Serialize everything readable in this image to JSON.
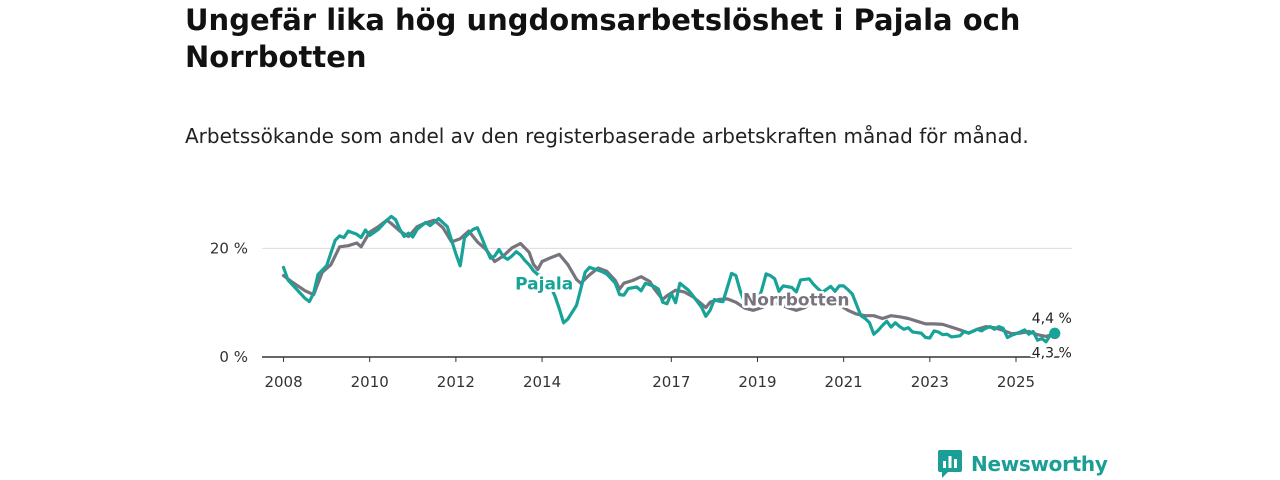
{
  "header": {
    "title": "Ungefär lika hög ungdomsarbetslöshet i Pajala och Norrbotten",
    "subtitle": "Arbetssökande som andel av den registerbaserade arbetskraften månad för månad."
  },
  "brand": {
    "name": "Newsworthy",
    "color": "#1a9e96",
    "icon": "newsworthy-logo-icon"
  },
  "chart_data": {
    "type": "line",
    "title": "Ungefär lika hög ungdomsarbetslöshet i Pajala och Norrbotten",
    "subtitle": "Arbetssökande som andel av den registerbaserade arbetskraften månad för månad.",
    "xlabel": "",
    "ylabel": "",
    "x_range": [
      2007.5,
      2026.3
    ],
    "ylim": [
      0,
      28
    ],
    "y_ticks": [
      {
        "value": 0,
        "label": "0 %"
      },
      {
        "value": 20,
        "label": "20 %"
      }
    ],
    "x_ticks": [
      {
        "value": 2008,
        "label": "2008"
      },
      {
        "value": 2010,
        "label": "2010"
      },
      {
        "value": 2012,
        "label": "2012"
      },
      {
        "value": 2014,
        "label": "2014"
      },
      {
        "value": 2017,
        "label": "2017"
      },
      {
        "value": 2019,
        "label": "2019"
      },
      {
        "value": 2021,
        "label": "2021"
      },
      {
        "value": 2023,
        "label": "2023"
      },
      {
        "value": 2025,
        "label": "2025"
      }
    ],
    "grid": true,
    "series": [
      {
        "name": "Norrbotten",
        "label": "Norrbotten",
        "color": "#78737d",
        "label_at": [
          2019.9,
          9.5
        ],
        "end_label": "4,3 %",
        "points": [
          [
            2008.0,
            15.0
          ],
          [
            2008.2,
            13.8
          ],
          [
            2008.5,
            12.2
          ],
          [
            2008.7,
            11.5
          ],
          [
            2008.9,
            15.6
          ],
          [
            2009.1,
            17.0
          ],
          [
            2009.3,
            20.3
          ],
          [
            2009.5,
            20.5
          ],
          [
            2009.7,
            21.0
          ],
          [
            2009.8,
            20.3
          ],
          [
            2010.0,
            23.0
          ],
          [
            2010.2,
            24.0
          ],
          [
            2010.4,
            25.2
          ],
          [
            2010.5,
            24.6
          ],
          [
            2010.7,
            23.2
          ],
          [
            2010.9,
            22.2
          ],
          [
            2011.1,
            24.0
          ],
          [
            2011.3,
            24.7
          ],
          [
            2011.5,
            25.2
          ],
          [
            2011.7,
            23.8
          ],
          [
            2011.9,
            21.2
          ],
          [
            2012.1,
            21.8
          ],
          [
            2012.3,
            23.2
          ],
          [
            2012.5,
            21.2
          ],
          [
            2012.7,
            19.8
          ],
          [
            2012.9,
            17.6
          ],
          [
            2013.1,
            18.6
          ],
          [
            2013.3,
            20.1
          ],
          [
            2013.5,
            20.9
          ],
          [
            2013.7,
            19.3
          ],
          [
            2013.8,
            17.1
          ],
          [
            2013.9,
            16.1
          ],
          [
            2014.0,
            17.6
          ],
          [
            2014.2,
            18.3
          ],
          [
            2014.4,
            18.9
          ],
          [
            2014.6,
            17.0
          ],
          [
            2014.8,
            14.3
          ],
          [
            2014.9,
            13.6
          ],
          [
            2015.1,
            15.1
          ],
          [
            2015.3,
            16.4
          ],
          [
            2015.5,
            15.8
          ],
          [
            2015.7,
            14.1
          ],
          [
            2015.8,
            12.5
          ],
          [
            2015.9,
            13.6
          ],
          [
            2016.1,
            14.1
          ],
          [
            2016.3,
            14.8
          ],
          [
            2016.5,
            13.9
          ],
          [
            2016.6,
            12.6
          ],
          [
            2016.8,
            10.6
          ],
          [
            2016.9,
            11.3
          ],
          [
            2017.1,
            12.3
          ],
          [
            2017.3,
            12.0
          ],
          [
            2017.5,
            11.1
          ],
          [
            2017.7,
            9.8
          ],
          [
            2017.8,
            9.1
          ],
          [
            2017.9,
            10.1
          ],
          [
            2018.1,
            10.6
          ],
          [
            2018.3,
            10.7
          ],
          [
            2018.5,
            10.1
          ],
          [
            2018.7,
            9.0
          ],
          [
            2018.9,
            8.6
          ],
          [
            2019.1,
            9.1
          ],
          [
            2019.3,
            9.9
          ],
          [
            2019.5,
            9.8
          ],
          [
            2019.7,
            9.1
          ],
          [
            2019.9,
            8.6
          ],
          [
            2020.1,
            9.1
          ],
          [
            2020.3,
            10.3
          ],
          [
            2020.5,
            11.1
          ],
          [
            2020.7,
            10.6
          ],
          [
            2020.9,
            9.6
          ],
          [
            2021.1,
            8.6
          ],
          [
            2021.3,
            7.9
          ],
          [
            2021.5,
            7.6
          ],
          [
            2021.7,
            7.6
          ],
          [
            2021.9,
            7.1
          ],
          [
            2022.1,
            7.6
          ],
          [
            2022.3,
            7.4
          ],
          [
            2022.5,
            7.1
          ],
          [
            2022.7,
            6.6
          ],
          [
            2022.9,
            6.1
          ],
          [
            2023.1,
            6.1
          ],
          [
            2023.3,
            6.0
          ],
          [
            2023.5,
            5.5
          ],
          [
            2023.7,
            5.0
          ],
          [
            2023.9,
            4.4
          ],
          [
            2024.1,
            5.1
          ],
          [
            2024.3,
            5.6
          ],
          [
            2024.5,
            5.4
          ],
          [
            2024.7,
            4.9
          ],
          [
            2024.9,
            4.3
          ],
          [
            2025.1,
            4.4
          ],
          [
            2025.3,
            4.7
          ],
          [
            2025.5,
            4.1
          ],
          [
            2025.7,
            3.8
          ],
          [
            2025.9,
            4.3
          ]
        ]
      },
      {
        "name": "Pajala",
        "label": "Pajala",
        "color": "#17a398",
        "label_at": [
          2014.05,
          12.4
        ],
        "end_label": "4,4 %",
        "points": [
          [
            2008.0,
            16.5
          ],
          [
            2008.1,
            14.2
          ],
          [
            2008.3,
            12.5
          ],
          [
            2008.5,
            10.8
          ],
          [
            2008.6,
            10.2
          ],
          [
            2008.7,
            11.8
          ],
          [
            2008.8,
            15.2
          ],
          [
            2009.0,
            16.8
          ],
          [
            2009.2,
            21.5
          ],
          [
            2009.3,
            22.3
          ],
          [
            2009.4,
            22.0
          ],
          [
            2009.5,
            23.2
          ],
          [
            2009.7,
            22.6
          ],
          [
            2009.8,
            22.0
          ],
          [
            2009.9,
            23.4
          ],
          [
            2010.0,
            22.4
          ],
          [
            2010.2,
            23.5
          ],
          [
            2010.4,
            25.2
          ],
          [
            2010.5,
            25.9
          ],
          [
            2010.6,
            25.3
          ],
          [
            2010.7,
            23.5
          ],
          [
            2010.8,
            22.2
          ],
          [
            2010.9,
            22.8
          ],
          [
            2011.0,
            22.1
          ],
          [
            2011.1,
            23.5
          ],
          [
            2011.3,
            24.8
          ],
          [
            2011.4,
            24.2
          ],
          [
            2011.6,
            25.5
          ],
          [
            2011.8,
            24.0
          ],
          [
            2011.9,
            21.5
          ],
          [
            2012.0,
            19.0
          ],
          [
            2012.1,
            16.8
          ],
          [
            2012.2,
            22.0
          ],
          [
            2012.4,
            23.5
          ],
          [
            2012.5,
            23.8
          ],
          [
            2012.6,
            22.0
          ],
          [
            2012.7,
            20.0
          ],
          [
            2012.8,
            18.2
          ],
          [
            2012.9,
            18.6
          ],
          [
            2013.0,
            19.8
          ],
          [
            2013.1,
            18.5
          ],
          [
            2013.2,
            18.0
          ],
          [
            2013.3,
            18.6
          ],
          [
            2013.4,
            19.4
          ],
          [
            2013.5,
            18.8
          ],
          [
            2013.6,
            17.8
          ],
          [
            2013.7,
            17.0
          ],
          [
            2013.8,
            15.9
          ],
          [
            2013.9,
            15.2
          ],
          [
            2014.0,
            14.8
          ],
          [
            2014.2,
            13.0
          ],
          [
            2014.3,
            11.2
          ],
          [
            2014.4,
            8.9
          ],
          [
            2014.5,
            6.3
          ],
          [
            2014.6,
            7.0
          ],
          [
            2014.8,
            9.5
          ],
          [
            2015.0,
            15.6
          ],
          [
            2015.1,
            16.5
          ],
          [
            2015.3,
            16.0
          ],
          [
            2015.4,
            15.7
          ],
          [
            2015.5,
            15.3
          ],
          [
            2015.7,
            13.6
          ],
          [
            2015.8,
            11.5
          ],
          [
            2015.9,
            11.4
          ],
          [
            2016.0,
            12.6
          ],
          [
            2016.2,
            12.9
          ],
          [
            2016.3,
            12.2
          ],
          [
            2016.4,
            13.6
          ],
          [
            2016.6,
            13.0
          ],
          [
            2016.7,
            12.5
          ],
          [
            2016.8,
            10.1
          ],
          [
            2016.9,
            9.8
          ],
          [
            2017.0,
            11.7
          ],
          [
            2017.1,
            10.0
          ],
          [
            2017.2,
            13.6
          ],
          [
            2017.4,
            12.3
          ],
          [
            2017.5,
            11.3
          ],
          [
            2017.7,
            9.2
          ],
          [
            2017.8,
            7.5
          ],
          [
            2017.9,
            8.6
          ],
          [
            2018.0,
            10.6
          ],
          [
            2018.1,
            10.3
          ],
          [
            2018.2,
            10.2
          ],
          [
            2018.4,
            15.4
          ],
          [
            2018.5,
            15.0
          ],
          [
            2018.6,
            12.2
          ],
          [
            2018.7,
            10.1
          ],
          [
            2018.9,
            9.6
          ],
          [
            2019.0,
            10.0
          ],
          [
            2019.1,
            12.4
          ],
          [
            2019.2,
            15.3
          ],
          [
            2019.3,
            15.0
          ],
          [
            2019.4,
            14.4
          ],
          [
            2019.5,
            12.1
          ],
          [
            2019.6,
            13.1
          ],
          [
            2019.8,
            12.8
          ],
          [
            2019.9,
            12.0
          ],
          [
            2020.0,
            14.2
          ],
          [
            2020.2,
            14.4
          ],
          [
            2020.3,
            13.4
          ],
          [
            2020.4,
            12.6
          ],
          [
            2020.5,
            11.9
          ],
          [
            2020.7,
            13.0
          ],
          [
            2020.8,
            12.1
          ],
          [
            2020.9,
            13.1
          ],
          [
            2021.0,
            13.1
          ],
          [
            2021.1,
            12.4
          ],
          [
            2021.2,
            11.6
          ],
          [
            2021.3,
            9.6
          ],
          [
            2021.4,
            7.6
          ],
          [
            2021.5,
            7.1
          ],
          [
            2021.6,
            6.3
          ],
          [
            2021.7,
            4.2
          ],
          [
            2021.8,
            4.9
          ],
          [
            2021.9,
            5.8
          ],
          [
            2022.0,
            6.6
          ],
          [
            2022.1,
            5.5
          ],
          [
            2022.2,
            6.3
          ],
          [
            2022.3,
            5.6
          ],
          [
            2022.4,
            5.1
          ],
          [
            2022.5,
            5.4
          ],
          [
            2022.6,
            4.6
          ],
          [
            2022.7,
            4.5
          ],
          [
            2022.8,
            4.4
          ],
          [
            2022.9,
            3.6
          ],
          [
            2023.0,
            3.5
          ],
          [
            2023.1,
            4.8
          ],
          [
            2023.2,
            4.6
          ],
          [
            2023.3,
            4.1
          ],
          [
            2023.4,
            4.2
          ],
          [
            2023.5,
            3.7
          ],
          [
            2023.7,
            3.9
          ],
          [
            2023.8,
            4.7
          ],
          [
            2023.9,
            4.4
          ],
          [
            2024.1,
            5.1
          ],
          [
            2024.2,
            4.8
          ],
          [
            2024.3,
            5.3
          ],
          [
            2024.4,
            5.6
          ],
          [
            2024.5,
            5.1
          ],
          [
            2024.6,
            5.6
          ],
          [
            2024.7,
            5.3
          ],
          [
            2024.8,
            3.6
          ],
          [
            2024.9,
            4.0
          ],
          [
            2025.1,
            4.6
          ],
          [
            2025.2,
            5.0
          ],
          [
            2025.3,
            4.2
          ],
          [
            2025.4,
            4.7
          ],
          [
            2025.5,
            3.1
          ],
          [
            2025.6,
            3.4
          ],
          [
            2025.7,
            2.8
          ],
          [
            2025.8,
            4.1
          ],
          [
            2025.9,
            4.4
          ]
        ]
      }
    ]
  }
}
